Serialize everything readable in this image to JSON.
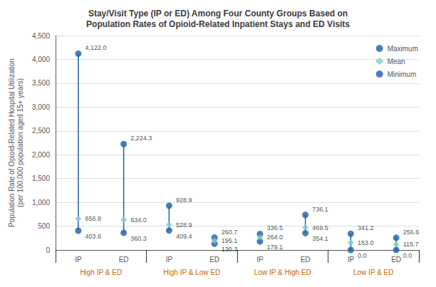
{
  "chart_data": {
    "type": "range",
    "title": "Stay/Visit Type (IP or ED) Among Four County Groups Based on\nPopulation Rates of Opioid-Related Inpatient Stays and ED Visits",
    "ylabel": "Population Rate of Opioid-Related Hospital Utilization\n(per 100,000 population aged 15+ years)",
    "groups": [
      "High IP & ED",
      "High IP & Low ED",
      "Low IP & High ED",
      "Low IP & ED"
    ],
    "categories": [
      "IP",
      "ED",
      "IP",
      "ED",
      "IP",
      "ED",
      "IP",
      "ED"
    ],
    "color": "#1a5fa8",
    "series": [
      {
        "name": "Maximum",
        "color": "#1a5fa8",
        "marker": "circle",
        "values": [
          4122.0,
          2224.3,
          928.9,
          260.7,
          336.5,
          736.1,
          341.2,
          256.6
        ],
        "value_labels": [
          "4,122.0",
          "2,224.3",
          "928.9",
          "260.7",
          "336.5",
          "736.1",
          "341.2",
          "256.6"
        ]
      },
      {
        "name": "Mean",
        "color": "#7ececa",
        "marker": "diamond",
        "values": [
          656.8,
          634.0,
          528.9,
          195.1,
          264.0,
          469.5,
          153.0,
          115.7
        ],
        "value_labels": [
          "656.8",
          "634.0",
          "528.9",
          "195.1",
          "264.0",
          "469.5",
          "153.0",
          "115.7"
        ]
      },
      {
        "name": "Minimum",
        "color": "#1a5fa8",
        "marker": "circle",
        "values": [
          403.6,
          360.3,
          409.4,
          130.3,
          179.1,
          354.1,
          0.0,
          0.0
        ],
        "value_labels": [
          "403.6",
          "360.3",
          "409.4",
          "130.3",
          "179.1",
          "354.1",
          "0.0",
          "0.0"
        ]
      }
    ],
    "ylim": [
      0,
      4500
    ],
    "yticks": [
      0,
      500,
      {
        "value": 1000,
        "label": "1,000"
      },
      {
        "value": 1500,
        "label": "1,500"
      },
      {
        "value": 2000,
        "label": "2,000"
      },
      {
        "value": 2500,
        "label": "2,500"
      },
      {
        "value": 3000,
        "label": "3,000"
      },
      {
        "value": 3500,
        "label": "3,500"
      },
      {
        "value": 4000,
        "label": "4,000"
      },
      {
        "value": 4500,
        "label": "4,500"
      }
    ],
    "grid": true,
    "legend": "upper right",
    "data_labels": true
  }
}
